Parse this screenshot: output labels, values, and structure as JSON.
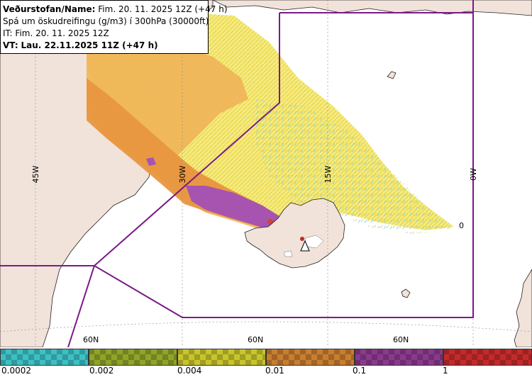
{
  "info": {
    "line1_prefix": "Veðurstofan/Name:",
    "line1_value": "Fim. 20. 11. 2025 12Z (+47 h)",
    "line2": "Spá um öskudreifingu (g/m3) í 300hPa (30000ft)",
    "line3": "IT: Fim. 20. 11. 2025 12Z",
    "line4_prefix": "VT:",
    "line4_value": "Lau. 22.11.2025 11Z (+47 h)"
  },
  "grid": {
    "lon_labels": [
      "45W",
      "30W",
      "15W",
      "0W"
    ],
    "lat_labels": [
      "60N",
      "60N",
      "60N"
    ],
    "marker": "0"
  },
  "legend": {
    "values": [
      "0.0002",
      "0.002",
      "0.004",
      "0.01",
      "0.1",
      "1"
    ],
    "colors": [
      "#3cc0c4",
      "#8fa428",
      "#c8c42c",
      "#c87e30",
      "#8a3a8c",
      "#c42a2a"
    ]
  },
  "map_colors": {
    "sea": "#ffffff",
    "land": "#f1e3da",
    "plume_yellow": "#ece24a",
    "plume_orange": "#f0b458",
    "plume_dark_orange": "#e89640",
    "plume_purple": "#a654b0",
    "boundary": "#7a1a86",
    "coast": "#222222"
  }
}
